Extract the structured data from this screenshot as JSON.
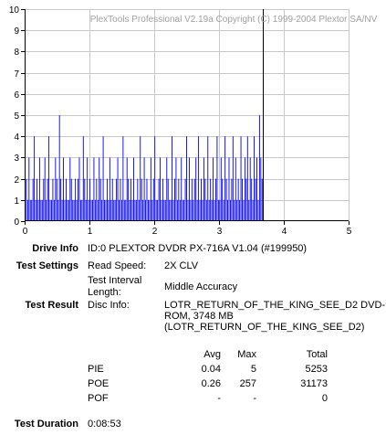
{
  "chart_data": {
    "type": "bar",
    "title": "PlexTools Professional V2.19a Copyright (C) 1999-2004 Plextor SA/NV",
    "xlabel": "",
    "ylabel": "",
    "xlim": [
      0,
      5
    ],
    "ylim": [
      0,
      10
    ],
    "x_ticks": [
      "0",
      "1",
      "2",
      "3",
      "4",
      "5"
    ],
    "y_ticks": [
      "0",
      "1",
      "2",
      "3",
      "4",
      "5",
      "6",
      "7",
      "8",
      "9",
      "10"
    ],
    "grid": true,
    "bar_color": "#0000ff",
    "marker_line": {
      "x": 3.68,
      "color": "#000000"
    },
    "series": [
      {
        "values": [
          1,
          2,
          1,
          3,
          1,
          1,
          2,
          4,
          1,
          2,
          1,
          3,
          1,
          1,
          2,
          3,
          1,
          2,
          4,
          1,
          1,
          2,
          1,
          3,
          2,
          1,
          5,
          2,
          1,
          3,
          1,
          2,
          1,
          1,
          3,
          2,
          1,
          1,
          2,
          1,
          2,
          3,
          1,
          1,
          4,
          2,
          1,
          3,
          1,
          2,
          1,
          1,
          3,
          1,
          2,
          1,
          3,
          2,
          1,
          4,
          1,
          1,
          2,
          1,
          3,
          1,
          2,
          1,
          1,
          2,
          3,
          1,
          2,
          1,
          4,
          1,
          1,
          3,
          2,
          1,
          2,
          1,
          3,
          1,
          1,
          2,
          1,
          4,
          2,
          1,
          3,
          1,
          2,
          1,
          1,
          3,
          1,
          2,
          4,
          1,
          1,
          2,
          3,
          1,
          2,
          1,
          1,
          3,
          2,
          1,
          1,
          4,
          1,
          2,
          3,
          1,
          2,
          1,
          3,
          1,
          1,
          2,
          4,
          1,
          3,
          1,
          2,
          1,
          2,
          3,
          1,
          4,
          1,
          2,
          1,
          3,
          2,
          1,
          4,
          1,
          2,
          1,
          3,
          1,
          2,
          4,
          1,
          1,
          3,
          2,
          1,
          4,
          2,
          1,
          3,
          1,
          2,
          4,
          1,
          3,
          1,
          2,
          1,
          4,
          2,
          1,
          3,
          2,
          4,
          1,
          3,
          2,
          1,
          4,
          2,
          3,
          1,
          5,
          3,
          2
        ]
      }
    ]
  },
  "info": {
    "drive_info_label": "Drive Info",
    "drive_info_value": "ID:0 PLEXTOR DVDR PX-716A V1.04 (#199950)",
    "test_settings_label": "Test Settings",
    "read_speed_label": "Read Speed:",
    "read_speed_value": "2X CLV",
    "interval_label_1": "Test Interval",
    "interval_label_2": "Length:",
    "interval_value": "Middle Accuracy",
    "test_result_label": "Test Result",
    "disc_info_label": "Disc Info:",
    "disc_info_line1": "LOTR_RETURN_OF_THE_KING_SEE_D2 DVD-",
    "disc_info_line2": "ROM, 3748 MB",
    "disc_info_line3": "(LOTR_RETURN_OF_THE_KING_SEE_D2)",
    "test_duration_label": "Test Duration",
    "test_duration_value": "0:08:53"
  },
  "stats": {
    "headers": [
      "Avg",
      "Max",
      "Total"
    ],
    "rows": [
      {
        "name": "PIE",
        "avg": "0.04",
        "max": "5",
        "total": "5253"
      },
      {
        "name": "POE",
        "avg": "0.26",
        "max": "257",
        "total": "31173"
      },
      {
        "name": "POF",
        "avg": "-",
        "max": "-",
        "total": "0"
      }
    ]
  }
}
